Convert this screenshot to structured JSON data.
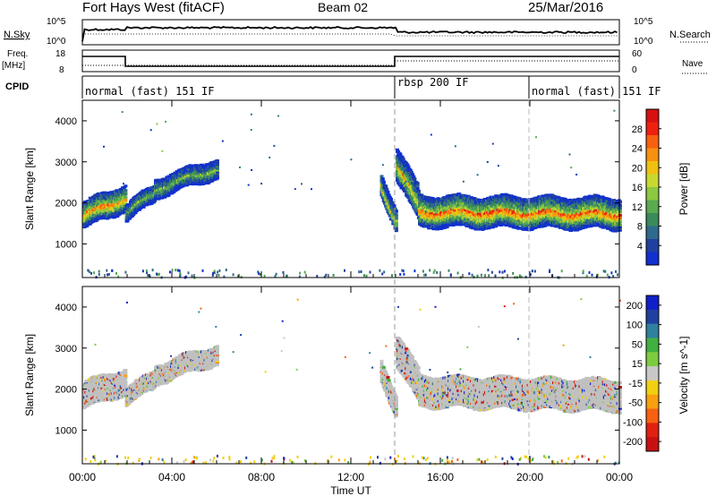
{
  "header": {
    "title": "Fort Hays West (fitACF)",
    "beam": "Beam 02",
    "date": "25/Mar/2016"
  },
  "top_panel": {
    "nsky_label": "N.Sky",
    "nsearch_label": "N.Search",
    "left_ticks": [
      "10^5",
      "10^0"
    ],
    "right_ticks": [
      "10^5",
      "10^0"
    ]
  },
  "freq_panel": {
    "freq_label": "Freq.",
    "freq_unit": "[MHz]",
    "nave_label": "Nave",
    "left_ticks": [
      "18",
      "8"
    ],
    "right_ticks": [
      "60",
      "0"
    ]
  },
  "cpid": {
    "label": "CPID",
    "segments": [
      "normal (fast) 151 IF",
      "rbsp 200 IF",
      "normal (fast) 151 IF"
    ]
  },
  "colors": {
    "power_scale": [
      "#1030d0",
      "#2040a0",
      "#2e6a8c",
      "#3a8a5a",
      "#5aaa50",
      "#8cc840",
      "#c8d830",
      "#f0c010",
      "#f89010",
      "#f86010",
      "#f02010",
      "#d81010"
    ],
    "velocity_scale": [
      "#1020c8",
      "#2040a0",
      "#3080a0",
      "#40b040",
      "#7ccc40",
      "#c8c8c8",
      "#f0d010",
      "#f8a010",
      "#f86010",
      "#e02010",
      "#c81010"
    ],
    "ground_scatter": "#c0c0c0"
  },
  "chart_data": [
    {
      "type": "heatmap",
      "name": "power-panel",
      "xlabel": "",
      "ylabel": "Slant Range [km]",
      "xlim": [
        0,
        24
      ],
      "ylim": [
        180,
        4500
      ],
      "yticks": [
        1000,
        2000,
        3000,
        4000
      ],
      "colorbar": {
        "label": "Power [dB]",
        "ticks": [
          4,
          8,
          12,
          16,
          20,
          24,
          28
        ],
        "range": [
          0,
          32
        ]
      },
      "bands": [
        {
          "x0": 0.0,
          "x1": 1.9,
          "center0": 1750,
          "center1": 2200,
          "halfwidth": 320,
          "peak": 24
        },
        {
          "x0": 1.9,
          "x1": 3.2,
          "center0": 1800,
          "center1": 2300,
          "halfwidth": 200,
          "peak": 14
        },
        {
          "x0": 3.2,
          "x1": 6.0,
          "center0": 2400,
          "center1": 2900,
          "halfwidth": 230,
          "peak": 14
        },
        {
          "x0": 13.3,
          "x1": 14.0,
          "center0": 2500,
          "center1": 1600,
          "halfwidth": 250,
          "peak": 20
        },
        {
          "x0": 14.0,
          "x1": 15.0,
          "center0": 3000,
          "center1": 2000,
          "halfwidth": 400,
          "peak": 20
        },
        {
          "x0": 15.0,
          "x1": 24.0,
          "center0": 1850,
          "center1": 1800,
          "halfwidth": 380,
          "peak": 26
        }
      ]
    },
    {
      "type": "heatmap",
      "name": "velocity-panel",
      "xlabel": "Time UT",
      "ylabel": "Slant Range [km]",
      "xlim": [
        0,
        24
      ],
      "ylim": [
        180,
        4500
      ],
      "yticks": [
        1000,
        2000,
        3000,
        4000
      ],
      "xticks": [
        "00:00",
        "04:00",
        "08:00",
        "12:00",
        "16:00",
        "20:00",
        "00:00"
      ],
      "colorbar": {
        "label": "Velocity [m s^-1]",
        "ticks": [
          200,
          100,
          50,
          15,
          -15,
          -50,
          -100,
          -200
        ]
      },
      "bands": [
        {
          "x0": 0.0,
          "x1": 1.9,
          "center0": 1900,
          "center1": 2250,
          "halfwidth": 320
        },
        {
          "x0": 1.9,
          "x1": 3.2,
          "center0": 1850,
          "center1": 2300,
          "halfwidth": 200
        },
        {
          "x0": 3.2,
          "x1": 6.0,
          "center0": 2400,
          "center1": 2900,
          "halfwidth": 230
        },
        {
          "x0": 13.3,
          "x1": 14.0,
          "center0": 2500,
          "center1": 1600,
          "halfwidth": 250
        },
        {
          "x0": 14.0,
          "x1": 15.0,
          "center0": 3000,
          "center1": 2100,
          "halfwidth": 400
        },
        {
          "x0": 15.0,
          "x1": 24.0,
          "center0": 2000,
          "center1": 1900,
          "halfwidth": 380
        }
      ]
    }
  ]
}
